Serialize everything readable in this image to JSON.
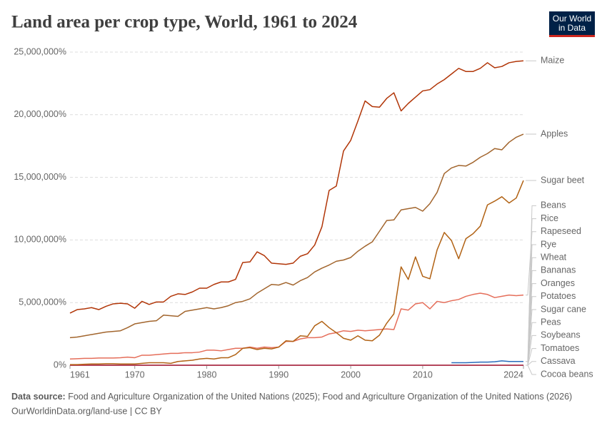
{
  "chart_data": {
    "type": "line",
    "title": "Land area per crop type, World, 1961 to 2024",
    "logo": [
      "Our World",
      "in Data"
    ],
    "source_label": "Data source:",
    "source": "Food and Agriculture Organization of the United Nations (2025); Food and Agriculture Organization of the United Nations (2026)",
    "footer": "OurWorldinData.org/land-use | CC BY",
    "grid": true,
    "xlim": [
      1961,
      2024
    ],
    "xticks": [
      1961,
      1970,
      1980,
      1990,
      2000,
      2010,
      2024
    ],
    "ylim": [
      0,
      25000000
    ],
    "yticks": [
      {
        "value": 0,
        "label": "0%"
      },
      {
        "value": 5000000,
        "label": "5,000,000%"
      },
      {
        "value": 10000000,
        "label": "10,000,000%"
      },
      {
        "value": 15000000,
        "label": "15,000,000%"
      },
      {
        "value": 20000000,
        "label": "20,000,000%"
      },
      {
        "value": 25000000,
        "label": "25,000,000%"
      }
    ],
    "x": [
      1961,
      1962,
      1963,
      1964,
      1965,
      1966,
      1967,
      1968,
      1969,
      1970,
      1971,
      1972,
      1973,
      1974,
      1975,
      1976,
      1977,
      1978,
      1979,
      1980,
      1981,
      1982,
      1983,
      1984,
      1985,
      1986,
      1987,
      1988,
      1989,
      1990,
      1991,
      1992,
      1993,
      1994,
      1995,
      1996,
      1997,
      1998,
      1999,
      2000,
      2001,
      2002,
      2003,
      2004,
      2005,
      2006,
      2007,
      2008,
      2009,
      2010,
      2011,
      2012,
      2013,
      2014,
      2015,
      2016,
      2017,
      2018,
      2019,
      2020,
      2021,
      2022,
      2023,
      2024
    ],
    "series": [
      {
        "name": "Maize",
        "color": "#b13507",
        "values": [
          4160000,
          4440000,
          4500000,
          4600000,
          4440000,
          4700000,
          4900000,
          4950000,
          4900000,
          4550000,
          5100000,
          4850000,
          5050000,
          5050000,
          5500000,
          5700000,
          5650000,
          5850000,
          6150000,
          6150000,
          6450000,
          6650000,
          6650000,
          6850000,
          8200000,
          8250000,
          9050000,
          8750000,
          8150000,
          8100000,
          8050000,
          8150000,
          8700000,
          8900000,
          9600000,
          11050000,
          13950000,
          14300000,
          17100000,
          17950000,
          19500000,
          21100000,
          20650000,
          20600000,
          21300000,
          21750000,
          20300000,
          20900000,
          21400000,
          21900000,
          22000000,
          22450000,
          22800000,
          23250000,
          23700000,
          23450000,
          23450000,
          23700000,
          24150000,
          23750000,
          23850000,
          24150000,
          24250000,
          24300000
        ]
      },
      {
        "name": "Apples",
        "color": "#a2652d",
        "values": [
          2200000,
          2250000,
          2350000,
          2450000,
          2550000,
          2650000,
          2700000,
          2750000,
          3000000,
          3300000,
          3400000,
          3500000,
          3550000,
          4000000,
          3950000,
          3900000,
          4300000,
          4400000,
          4500000,
          4600000,
          4500000,
          4600000,
          4750000,
          5000000,
          5100000,
          5300000,
          5750000,
          6100000,
          6450000,
          6400000,
          6600000,
          6400000,
          6750000,
          7000000,
          7450000,
          7750000,
          8000000,
          8300000,
          8400000,
          8600000,
          9100000,
          9500000,
          9850000,
          10700000,
          11550000,
          11600000,
          12400000,
          12500000,
          12600000,
          12300000,
          12900000,
          13800000,
          15300000,
          15750000,
          15950000,
          15900000,
          16200000,
          16600000,
          16900000,
          17300000,
          17200000,
          17800000,
          18200000,
          18450000
        ]
      },
      {
        "name": "Sugar beet",
        "color": "#b16214",
        "values": [
          50000,
          50000,
          80000,
          100000,
          100000,
          120000,
          120000,
          100000,
          100000,
          100000,
          150000,
          200000,
          200000,
          200000,
          150000,
          300000,
          350000,
          400000,
          500000,
          550000,
          500000,
          600000,
          600000,
          850000,
          1350000,
          1400000,
          1250000,
          1350000,
          1300000,
          1450000,
          1950000,
          1900000,
          2350000,
          2300000,
          3150000,
          3500000,
          3000000,
          2600000,
          2150000,
          2000000,
          2350000,
          2000000,
          1950000,
          2400000,
          3350000,
          4100000,
          7850000,
          6850000,
          8650000,
          7100000,
          6900000,
          9200000,
          10600000,
          9950000,
          8500000,
          10100000,
          10500000,
          11100000,
          12800000,
          13100000,
          13450000,
          12950000,
          13350000,
          14750000
        ]
      },
      {
        "name": "Beans",
        "color": "#d73c50",
        "values": [
          0,
          0,
          0,
          0,
          0,
          0,
          0,
          0,
          0,
          0,
          0,
          0,
          0,
          0,
          0,
          0,
          0,
          0,
          0,
          0,
          0,
          0,
          0,
          0,
          0,
          0,
          0,
          0,
          0,
          0,
          0,
          0,
          0,
          0,
          0,
          0,
          0,
          0,
          0,
          0,
          0,
          0,
          0,
          0,
          0,
          0,
          0,
          0,
          0,
          0,
          0,
          0,
          0,
          0,
          0,
          0,
          0,
          0,
          0,
          0,
          0,
          0,
          0,
          0
        ]
      },
      {
        "name": "Rice",
        "color": "#286bbb",
        "values": [
          null,
          null,
          null,
          null,
          null,
          null,
          null,
          null,
          null,
          null,
          null,
          null,
          null,
          null,
          null,
          null,
          null,
          null,
          null,
          null,
          null,
          null,
          null,
          null,
          null,
          null,
          null,
          null,
          null,
          null,
          null,
          null,
          null,
          null,
          null,
          null,
          null,
          null,
          null,
          null,
          null,
          null,
          null,
          null,
          null,
          null,
          null,
          null,
          null,
          null,
          null,
          null,
          null,
          200000,
          200000,
          200000,
          220000,
          250000,
          250000,
          280000,
          350000,
          300000,
          300000,
          300000
        ]
      },
      {
        "name": "Rapeseed",
        "color": "#e56e5a",
        "values": [
          500000,
          520000,
          550000,
          550000,
          580000,
          580000,
          580000,
          600000,
          650000,
          600000,
          800000,
          800000,
          850000,
          900000,
          950000,
          950000,
          1000000,
          1000000,
          1050000,
          1200000,
          1200000,
          1150000,
          1250000,
          1350000,
          1350000,
          1450000,
          1350000,
          1450000,
          1400000,
          1450000,
          1900000,
          1900000,
          2100000,
          2200000,
          2200000,
          2250000,
          2500000,
          2600000,
          2750000,
          2700000,
          2800000,
          2750000,
          2800000,
          2850000,
          2900000,
          2850000,
          4500000,
          4400000,
          4900000,
          5000000,
          4500000,
          5100000,
          5000000,
          5150000,
          5250000,
          5500000,
          5650000,
          5750000,
          5650000,
          5400000,
          5500000,
          5600000,
          5550000,
          5600000
        ]
      },
      {
        "name": "Rye",
        "color": "#4c6a9c",
        "values": [
          0,
          0,
          0,
          0,
          0,
          0,
          0,
          0,
          0,
          0,
          0,
          0,
          0,
          0,
          0,
          0,
          0,
          0,
          0,
          0,
          0,
          0,
          0,
          0,
          0,
          0,
          0,
          0,
          0,
          0,
          0,
          0,
          0,
          0,
          0,
          0,
          0,
          0,
          0,
          0,
          0,
          0,
          0,
          0,
          0,
          0,
          0,
          0,
          0,
          0,
          0,
          0,
          0,
          0,
          0,
          0,
          0,
          0,
          0,
          0,
          0,
          0,
          0,
          0
        ]
      },
      {
        "name": "Wheat",
        "color": "#2c8465",
        "values": [
          0,
          0,
          0,
          0,
          0,
          0,
          0,
          0,
          0,
          0,
          0,
          0,
          0,
          0,
          0,
          0,
          0,
          0,
          0,
          0,
          0,
          0,
          0,
          0,
          0,
          0,
          0,
          0,
          0,
          0,
          0,
          0,
          0,
          0,
          0,
          0,
          0,
          0,
          0,
          0,
          0,
          0,
          0,
          0,
          0,
          0,
          0,
          0,
          0,
          0,
          0,
          0,
          0,
          0,
          0,
          0,
          0,
          0,
          0,
          0,
          0,
          0,
          0,
          0
        ]
      },
      {
        "name": "Bananas",
        "color": "#6d3e91",
        "values": [
          0,
          0,
          0,
          0,
          0,
          0,
          0,
          0,
          0,
          0,
          0,
          0,
          0,
          0,
          0,
          0,
          0,
          0,
          0,
          0,
          0,
          0,
          0,
          0,
          0,
          0,
          0,
          0,
          0,
          0,
          0,
          0,
          0,
          0,
          0,
          0,
          0,
          0,
          0,
          0,
          0,
          0,
          0,
          0,
          0,
          0,
          0,
          0,
          0,
          0,
          0,
          0,
          0,
          0,
          0,
          0,
          0,
          0,
          0,
          0,
          0,
          0,
          0,
          0
        ]
      },
      {
        "name": "Oranges",
        "color": "#883039",
        "values": [
          0,
          0,
          0,
          0,
          0,
          0,
          0,
          0,
          0,
          0,
          0,
          0,
          0,
          0,
          0,
          0,
          0,
          0,
          0,
          0,
          0,
          0,
          0,
          0,
          0,
          0,
          0,
          0,
          0,
          0,
          0,
          0,
          0,
          0,
          0,
          0,
          0,
          0,
          0,
          0,
          0,
          0,
          0,
          0,
          0,
          0,
          0,
          0,
          0,
          0,
          0,
          0,
          0,
          0,
          0,
          0,
          0,
          0,
          0,
          0,
          0,
          0,
          0,
          0
        ]
      },
      {
        "name": "Potatoes",
        "color": "#00295b",
        "values": [
          0,
          0,
          0,
          0,
          0,
          0,
          0,
          0,
          0,
          0,
          0,
          0,
          0,
          0,
          0,
          0,
          0,
          0,
          0,
          0,
          0,
          0,
          0,
          0,
          0,
          0,
          0,
          0,
          0,
          0,
          0,
          0,
          0,
          0,
          0,
          0,
          0,
          0,
          0,
          0,
          0,
          0,
          0,
          0,
          0,
          0,
          0,
          0,
          0,
          0,
          0,
          0,
          0,
          0,
          0,
          0,
          0,
          0,
          0,
          0,
          0,
          0,
          0,
          0
        ]
      },
      {
        "name": "Sugar cane",
        "color": "#a2559c",
        "values": [
          0,
          0,
          0,
          0,
          0,
          0,
          0,
          0,
          0,
          0,
          0,
          0,
          0,
          0,
          0,
          0,
          0,
          0,
          0,
          0,
          0,
          0,
          0,
          0,
          0,
          0,
          0,
          0,
          0,
          0,
          0,
          0,
          0,
          0,
          0,
          0,
          0,
          0,
          0,
          0,
          0,
          0,
          0,
          0,
          0,
          0,
          0,
          0,
          0,
          0,
          0,
          0,
          0,
          0,
          0,
          0,
          0,
          0,
          0,
          0,
          0,
          0,
          0,
          0
        ]
      },
      {
        "name": "Peas",
        "color": "#996d39",
        "values": [
          0,
          0,
          0,
          0,
          0,
          0,
          0,
          0,
          0,
          0,
          0,
          0,
          0,
          0,
          0,
          0,
          0,
          0,
          0,
          0,
          0,
          0,
          0,
          0,
          0,
          0,
          0,
          0,
          0,
          0,
          0,
          0,
          0,
          0,
          0,
          0,
          0,
          0,
          0,
          0,
          0,
          0,
          0,
          0,
          0,
          0,
          0,
          0,
          0,
          0,
          0,
          0,
          0,
          0,
          0,
          0,
          0,
          0,
          0,
          0,
          0,
          0,
          0,
          0
        ]
      },
      {
        "name": "Soybeans",
        "color": "#38aaba",
        "values": [
          0,
          0,
          0,
          0,
          0,
          0,
          0,
          0,
          0,
          0,
          0,
          0,
          0,
          0,
          0,
          0,
          0,
          0,
          0,
          0,
          0,
          0,
          0,
          0,
          0,
          0,
          0,
          0,
          0,
          0,
          0,
          0,
          0,
          0,
          0,
          0,
          0,
          0,
          0,
          0,
          0,
          0,
          0,
          0,
          0,
          0,
          0,
          0,
          0,
          0,
          0,
          0,
          0,
          0,
          0,
          0,
          0,
          0,
          0,
          0,
          0,
          0,
          0,
          0
        ]
      },
      {
        "name": "Tomatoes",
        "color": "#970046",
        "values": [
          0,
          0,
          0,
          0,
          0,
          0,
          0,
          0,
          0,
          0,
          0,
          0,
          0,
          0,
          0,
          0,
          0,
          0,
          0,
          0,
          0,
          0,
          0,
          0,
          0,
          0,
          0,
          0,
          0,
          0,
          0,
          0,
          0,
          0,
          0,
          0,
          0,
          0,
          0,
          0,
          0,
          0,
          0,
          0,
          0,
          0,
          0,
          0,
          0,
          0,
          0,
          0,
          0,
          0,
          0,
          0,
          0,
          0,
          0,
          0,
          0,
          0,
          0,
          0
        ]
      },
      {
        "name": "Cassava",
        "color": "#578145",
        "values": [
          0,
          0,
          0,
          0,
          0,
          0,
          0,
          0,
          0,
          0,
          0,
          0,
          0,
          0,
          0,
          0,
          0,
          0,
          0,
          0,
          0,
          0,
          0,
          0,
          0,
          0,
          0,
          0,
          0,
          0,
          0,
          0,
          0,
          0,
          0,
          0,
          0,
          0,
          0,
          0,
          0,
          0,
          0,
          0,
          0,
          0,
          0,
          0,
          0,
          0,
          0,
          0,
          0,
          0,
          0,
          0,
          0,
          0,
          0,
          0,
          0,
          0,
          0,
          0
        ]
      },
      {
        "name": "Cocoa beans",
        "color": "#0c4a2b",
        "values": [
          0,
          0,
          0,
          0,
          0,
          0,
          0,
          0,
          0,
          0,
          0,
          0,
          0,
          0,
          0,
          0,
          0,
          0,
          0,
          0,
          0,
          0,
          0,
          0,
          0,
          0,
          0,
          0,
          0,
          0,
          0,
          0,
          0,
          0,
          0,
          0,
          0,
          0,
          0,
          0,
          0,
          0,
          0,
          0,
          0,
          0,
          0,
          0,
          0,
          0,
          0,
          0,
          0,
          0,
          0,
          0,
          0,
          0,
          0,
          0,
          0,
          0,
          0,
          0
        ]
      }
    ]
  }
}
